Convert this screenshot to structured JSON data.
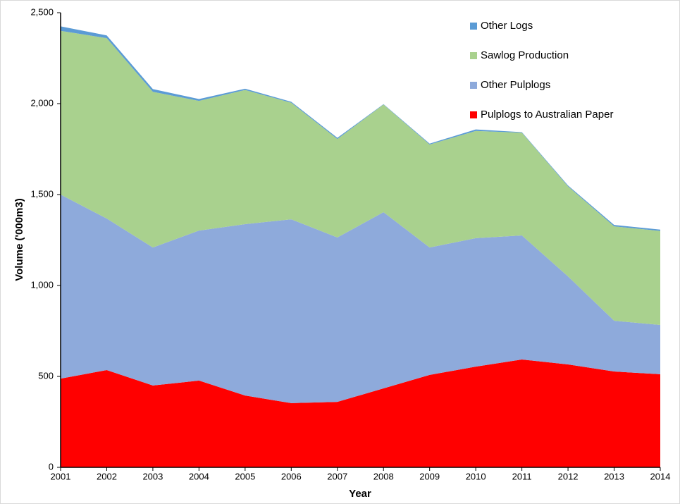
{
  "chart_data": {
    "type": "stacked_area",
    "x_label": "Year",
    "y_label": "Volume ('000m3)",
    "x": [
      2001,
      2002,
      2003,
      2004,
      2005,
      2006,
      2007,
      2008,
      2009,
      2010,
      2011,
      2012,
      2013,
      2014
    ],
    "xlim": [
      2001,
      2014
    ],
    "ylim": [
      0,
      2500
    ],
    "yticks": [
      0,
      500,
      {
        "value": 1000,
        "label": "1,000"
      },
      {
        "value": 1500,
        "label": "1,500"
      },
      {
        "value": 2000,
        "label": "2,000"
      },
      {
        "value": 2500,
        "label": "2,500"
      }
    ],
    "legend": "upper right",
    "series": [
      {
        "name": "Pulplogs to Australian Paper",
        "color": "#ff0000",
        "values": [
          488,
          535,
          450,
          477,
          395,
          353,
          360,
          434,
          508,
          554,
          593,
          566,
          527,
          512
        ]
      },
      {
        "name": "Other Pulplogs",
        "color": "#8eaadb",
        "values": [
          1012,
          833,
          759,
          825,
          942,
          1011,
          904,
          969,
          701,
          706,
          682,
          484,
          279,
          271
        ]
      },
      {
        "name": "Sawlog Production",
        "color": "#a9d18e",
        "values": [
          900,
          992,
          856,
          713,
          738,
          641,
          541,
          592,
          566,
          590,
          565,
          495,
          519,
          517
        ]
      },
      {
        "name": "Other Logs",
        "color": "#5b9bd5",
        "values": [
          25,
          15,
          15,
          10,
          7,
          5,
          7,
          2,
          5,
          8,
          3,
          5,
          8,
          7
        ]
      }
    ]
  }
}
